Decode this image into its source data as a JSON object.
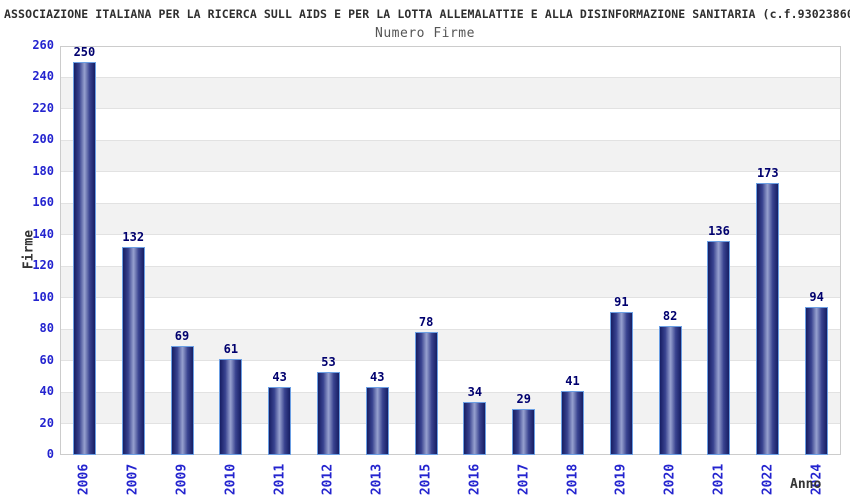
{
  "header": {
    "title": "ASSOCIAZIONE ITALIANA PER LA RICERCA SULL AIDS E PER LA LOTTA ALLEMALATTIE E ALLA DISINFORMAZIONE SANITARIA (c.f.93023860"
  },
  "chart_data": {
    "type": "bar",
    "title": "Numero Firme",
    "xlabel": "Anno",
    "ylabel": "Firme",
    "categories": [
      "2006",
      "2007",
      "2009",
      "2010",
      "2011",
      "2012",
      "2013",
      "2015",
      "2016",
      "2017",
      "2018",
      "2019",
      "2020",
      "2021",
      "2022",
      "2024"
    ],
    "values": [
      250,
      132,
      69,
      61,
      43,
      53,
      43,
      78,
      34,
      29,
      41,
      91,
      82,
      136,
      173,
      94
    ],
    "ylim": [
      0,
      260
    ],
    "ytick_step": 20,
    "yticks": [
      0,
      20,
      40,
      60,
      80,
      100,
      120,
      140,
      160,
      180,
      200,
      220,
      240,
      260
    ],
    "legend": "none",
    "grid": "horizontal-bands-alternating",
    "colors": {
      "bar_dark": "#171e63",
      "bar_mid": "#38428f",
      "bar_light": "#97a1cf",
      "bar_border": "#6b9fe4",
      "tick_label": "#2424cf",
      "value_label": "#00006e",
      "axis_title": "#333333",
      "chart_title": "#555555",
      "header_text": "#2e2e2e",
      "band_gray": "#f2f2f2",
      "gridline": "#e2e2e2",
      "plot_border": "#cccccc"
    }
  }
}
